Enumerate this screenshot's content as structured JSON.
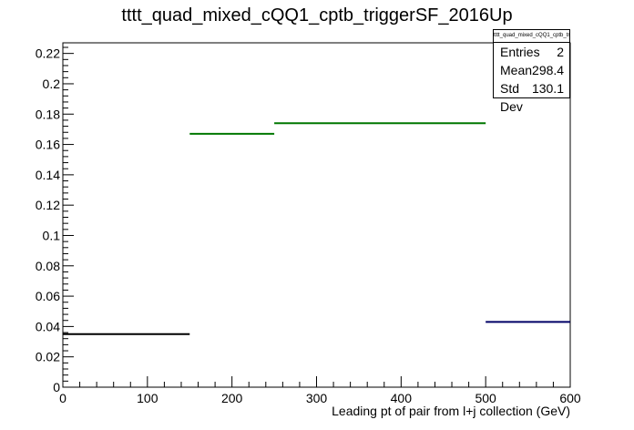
{
  "title": "tttt_quad_mixed_cQQ1_cptb_triggerSF_2016Up",
  "stats": {
    "title": "tttt_quad_mixed_cQQ1_cptb_triggerSF_2016Up",
    "rows": [
      {
        "label": "Entries",
        "value": "2"
      },
      {
        "label": "Mean",
        "value": "298.4"
      },
      {
        "label": "Std Dev",
        "value": "130.1"
      }
    ]
  },
  "chart_data": {
    "type": "bar",
    "title": "tttt_quad_mixed_cQQ1_cptb_triggerSF_2016Up",
    "xlabel": "Leading pt of pair from l+j collection (GeV)",
    "ylabel": "",
    "xlim": [
      0,
      600
    ],
    "ylim": [
      0,
      0.227
    ],
    "xticks": [
      0,
      100,
      200,
      300,
      400,
      500,
      600
    ],
    "yticks": [
      0,
      0.02,
      0.04,
      0.06,
      0.08,
      0.1,
      0.12,
      0.14,
      0.16,
      0.18,
      0.2,
      0.22
    ],
    "xtick_labels": [
      "0",
      "100",
      "200",
      "300",
      "400",
      "500",
      "600"
    ],
    "ytick_labels": [
      "0",
      "0.02",
      "0.04",
      "0.06",
      "0.08",
      "0.1",
      "0.12",
      "0.14",
      "0.16",
      "0.18",
      "0.2",
      "0.22"
    ],
    "grid": false,
    "legend": "top-right",
    "bins": [
      {
        "x0": 0,
        "x1": 150,
        "value": 0.035,
        "color": "#000000"
      },
      {
        "x0": 150,
        "x1": 250,
        "value": 0.167,
        "color": "#007700"
      },
      {
        "x0": 250,
        "x1": 500,
        "value": 0.174,
        "color": "#007700"
      },
      {
        "x0": 500,
        "x1": 600,
        "value": 0.043,
        "color": "#000066"
      }
    ]
  }
}
